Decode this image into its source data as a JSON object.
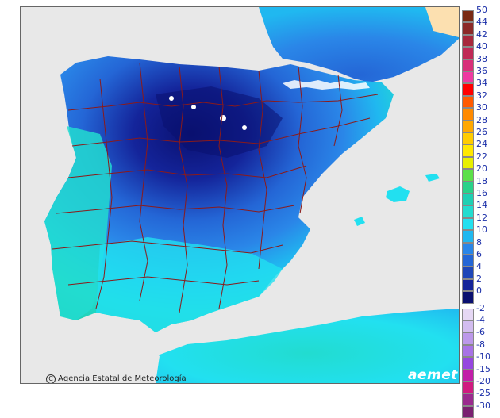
{
  "map": {
    "credit": "Agencia Estatal de Meteorología",
    "logo": "aemet"
  },
  "legend": {
    "positive": [
      {
        "label": "50",
        "color": "#7a2a12"
      },
      {
        "label": "44",
        "color": "#8c2a28"
      },
      {
        "label": "42",
        "color": "#a8283c"
      },
      {
        "label": "40",
        "color": "#c02a56"
      },
      {
        "label": "38",
        "color": "#d8307a"
      },
      {
        "label": "36",
        "color": "#ee3aa2"
      },
      {
        "label": "34",
        "color": "#ff0000"
      },
      {
        "label": "32",
        "color": "#ff5a00"
      },
      {
        "label": "30",
        "color": "#ff8a00"
      },
      {
        "label": "28",
        "color": "#ffa800"
      },
      {
        "label": "26",
        "color": "#ffcc00"
      },
      {
        "label": "24",
        "color": "#ffe800"
      },
      {
        "label": "22",
        "color": "#e8f000"
      },
      {
        "label": "20",
        "color": "#5ce04a"
      },
      {
        "label": "18",
        "color": "#2ad28a"
      },
      {
        "label": "16",
        "color": "#1fd0b4"
      },
      {
        "label": "14",
        "color": "#22dcd0"
      },
      {
        "label": "12",
        "color": "#22e0f0"
      },
      {
        "label": "10",
        "color": "#20b8f0"
      },
      {
        "label": "8",
        "color": "#2a86e8"
      },
      {
        "label": "6",
        "color": "#2466d6"
      },
      {
        "label": "4",
        "color": "#1e46b8"
      },
      {
        "label": "2",
        "color": "#14249a"
      },
      {
        "label": "0",
        "color": "#0a1070"
      }
    ],
    "negative": [
      {
        "label": "-2",
        "color": "#e6d8f4"
      },
      {
        "label": "-4",
        "color": "#d2bcef"
      },
      {
        "label": "-6",
        "color": "#bc98ea"
      },
      {
        "label": "-8",
        "color": "#a872e6"
      },
      {
        "label": "-10",
        "color": "#9646e0"
      },
      {
        "label": "-15",
        "color": "#c21ea8"
      },
      {
        "label": "-20",
        "color": "#d01a80"
      },
      {
        "label": "-25",
        "color": "#9a2a8e"
      },
      {
        "label": "-30",
        "color": "#7a2070"
      }
    ]
  }
}
